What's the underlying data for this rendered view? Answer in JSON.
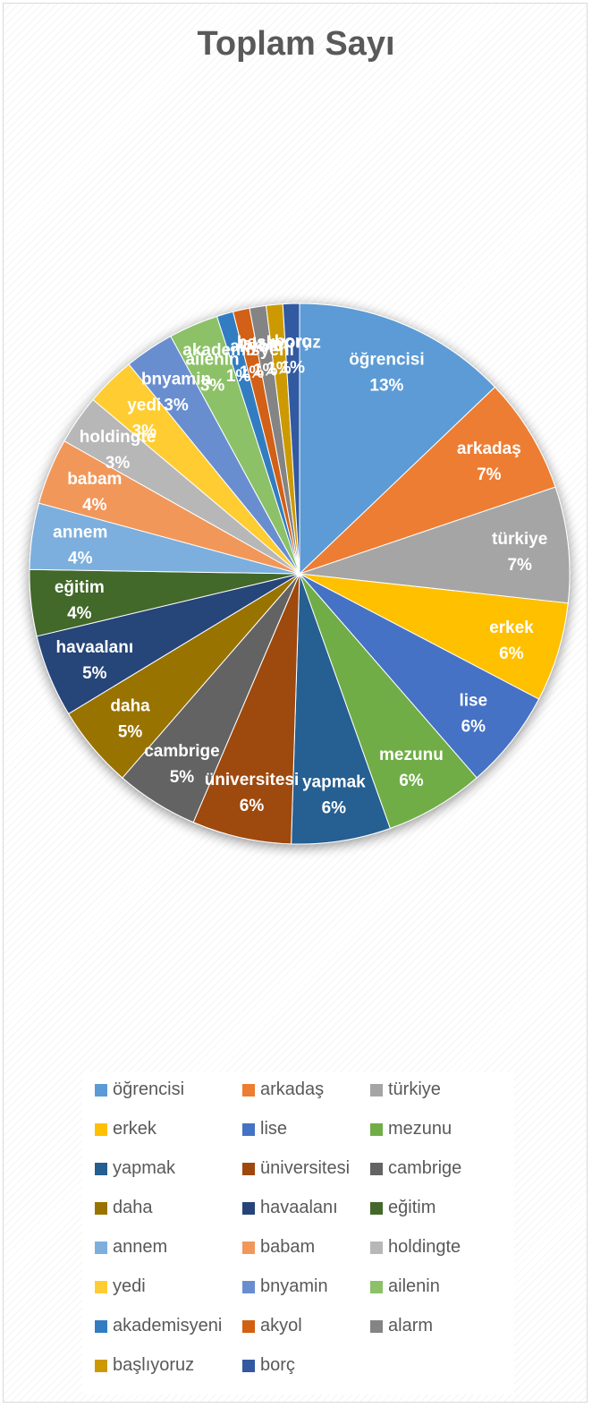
{
  "chart_data": {
    "type": "pie",
    "title": "Toplam Sayı",
    "slices": [
      {
        "label": "öğrencisi",
        "value": 13,
        "pct_label": "13%",
        "color": "#5B9BD5"
      },
      {
        "label": "arkadaş",
        "value": 7,
        "pct_label": "7%",
        "color": "#ED7D31"
      },
      {
        "label": "türkiye",
        "value": 7,
        "pct_label": "7%",
        "color": "#A5A5A5"
      },
      {
        "label": "erkek",
        "value": 6,
        "pct_label": "6%",
        "color": "#FFC000"
      },
      {
        "label": "lise",
        "value": 6,
        "pct_label": "6%",
        "color": "#4472C4"
      },
      {
        "label": "mezunu",
        "value": 6,
        "pct_label": "6%",
        "color": "#70AD47"
      },
      {
        "label": "yapmak",
        "value": 6,
        "pct_label": "6%",
        "color": "#255E91"
      },
      {
        "label": "üniversitesi",
        "value": 6,
        "pct_label": "6%",
        "color": "#9E480E"
      },
      {
        "label": "cambrige",
        "value": 5,
        "pct_label": "5%",
        "color": "#636363"
      },
      {
        "label": "daha",
        "value": 5,
        "pct_label": "5%",
        "color": "#997300"
      },
      {
        "label": "havaalanı",
        "value": 5,
        "pct_label": "5%",
        "color": "#264478"
      },
      {
        "label": "eğitim",
        "value": 4,
        "pct_label": "4%",
        "color": "#43682B"
      },
      {
        "label": "annem",
        "value": 4,
        "pct_label": "4%",
        "color": "#7CAFDD"
      },
      {
        "label": "babam",
        "value": 4,
        "pct_label": "4%",
        "color": "#F1975A"
      },
      {
        "label": "holdingte",
        "value": 3,
        "pct_label": "3%",
        "color": "#B7B7B7"
      },
      {
        "label": "yedi",
        "value": 3,
        "pct_label": "3%",
        "color": "#FFCD33"
      },
      {
        "label": "bnyamin",
        "value": 3,
        "pct_label": "3%",
        "color": "#698ED0"
      },
      {
        "label": "ailenin",
        "value": 3,
        "pct_label": "3%",
        "color": "#8CC168"
      },
      {
        "label": "akademisyeni",
        "value": 1,
        "pct_label": "1%",
        "color": "#327DC2"
      },
      {
        "label": "akyol",
        "value": 1,
        "pct_label": "1%",
        "color": "#D26012"
      },
      {
        "label": "alarm",
        "value": 1,
        "pct_label": "1%",
        "color": "#848484"
      },
      {
        "label": "başlıyoruz",
        "value": 1,
        "pct_label": "1%",
        "color": "#CC9A00"
      },
      {
        "label": "borç",
        "value": 1,
        "pct_label": "1%",
        "color": "#335AA1"
      }
    ],
    "legend_placement": "bottom",
    "data_labels": "category name and percentage"
  }
}
